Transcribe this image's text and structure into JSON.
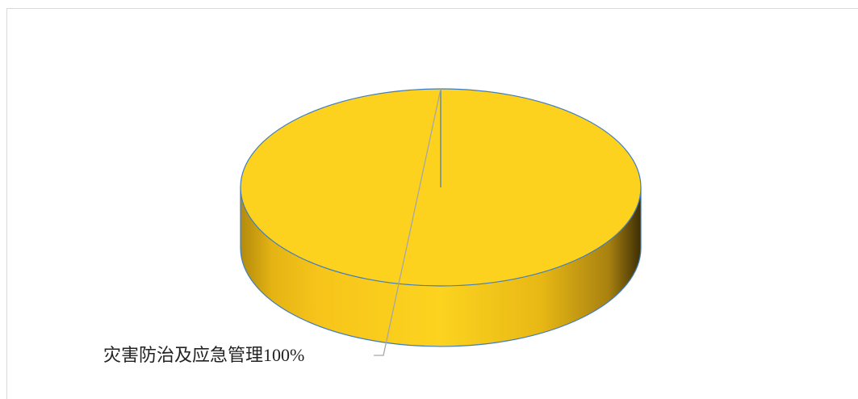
{
  "chart_data": {
    "type": "pie",
    "categories": [
      "灾害防治及应急管理"
    ],
    "values": [
      100
    ],
    "value_labels": [
      "100%"
    ],
    "colors": [
      "#fcd21f"
    ]
  }
}
